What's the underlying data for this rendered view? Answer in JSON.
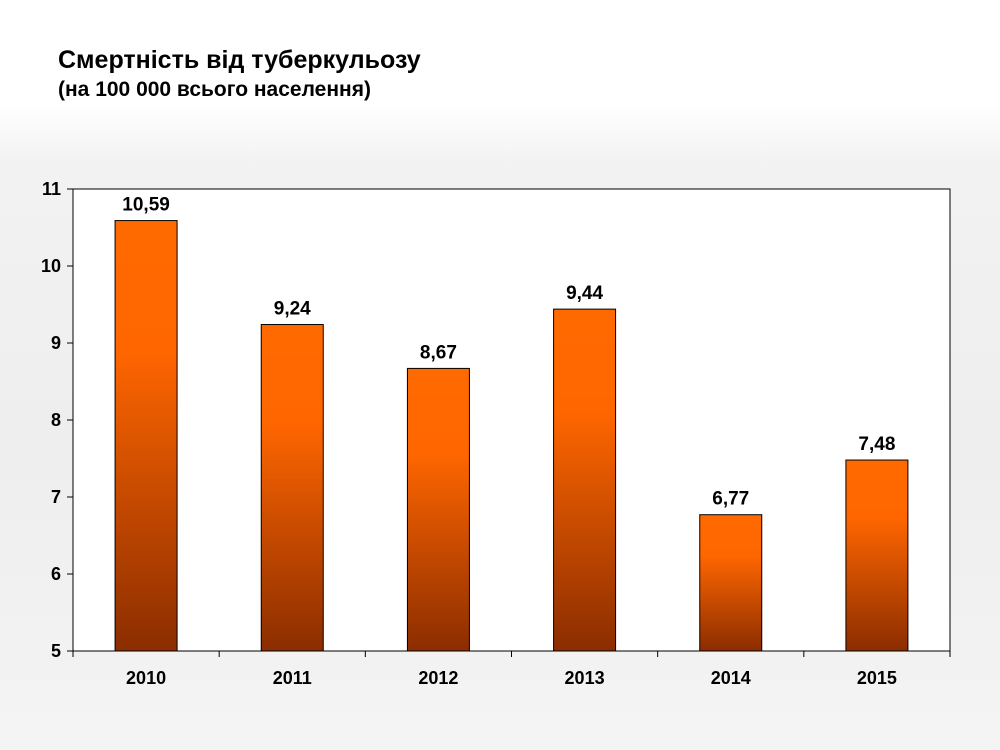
{
  "chart_data": {
    "type": "bar",
    "title": "Смертність від туберкульозу",
    "subtitle": "(на 100 000 всього населення)",
    "categories": [
      "2010",
      "2011",
      "2012",
      "2013",
      "2014",
      "2015"
    ],
    "values": [
      10.59,
      9.24,
      8.67,
      9.44,
      6.77,
      7.48
    ],
    "data_labels": [
      "10,59",
      "9,24",
      "8,67",
      "9,44",
      "6,77",
      "7,48"
    ],
    "ylim": [
      5,
      11
    ],
    "yticks": [
      "5",
      "6",
      "7",
      "8",
      "9",
      "10",
      "11"
    ],
    "grid": false,
    "legend": "none",
    "xlabel": "",
    "ylabel": "",
    "colors": {
      "bar_top": "#ff6600",
      "bar_bottom": "#8b2d00",
      "bar_outline": "#000000",
      "plot_background": "#ffffff"
    }
  }
}
